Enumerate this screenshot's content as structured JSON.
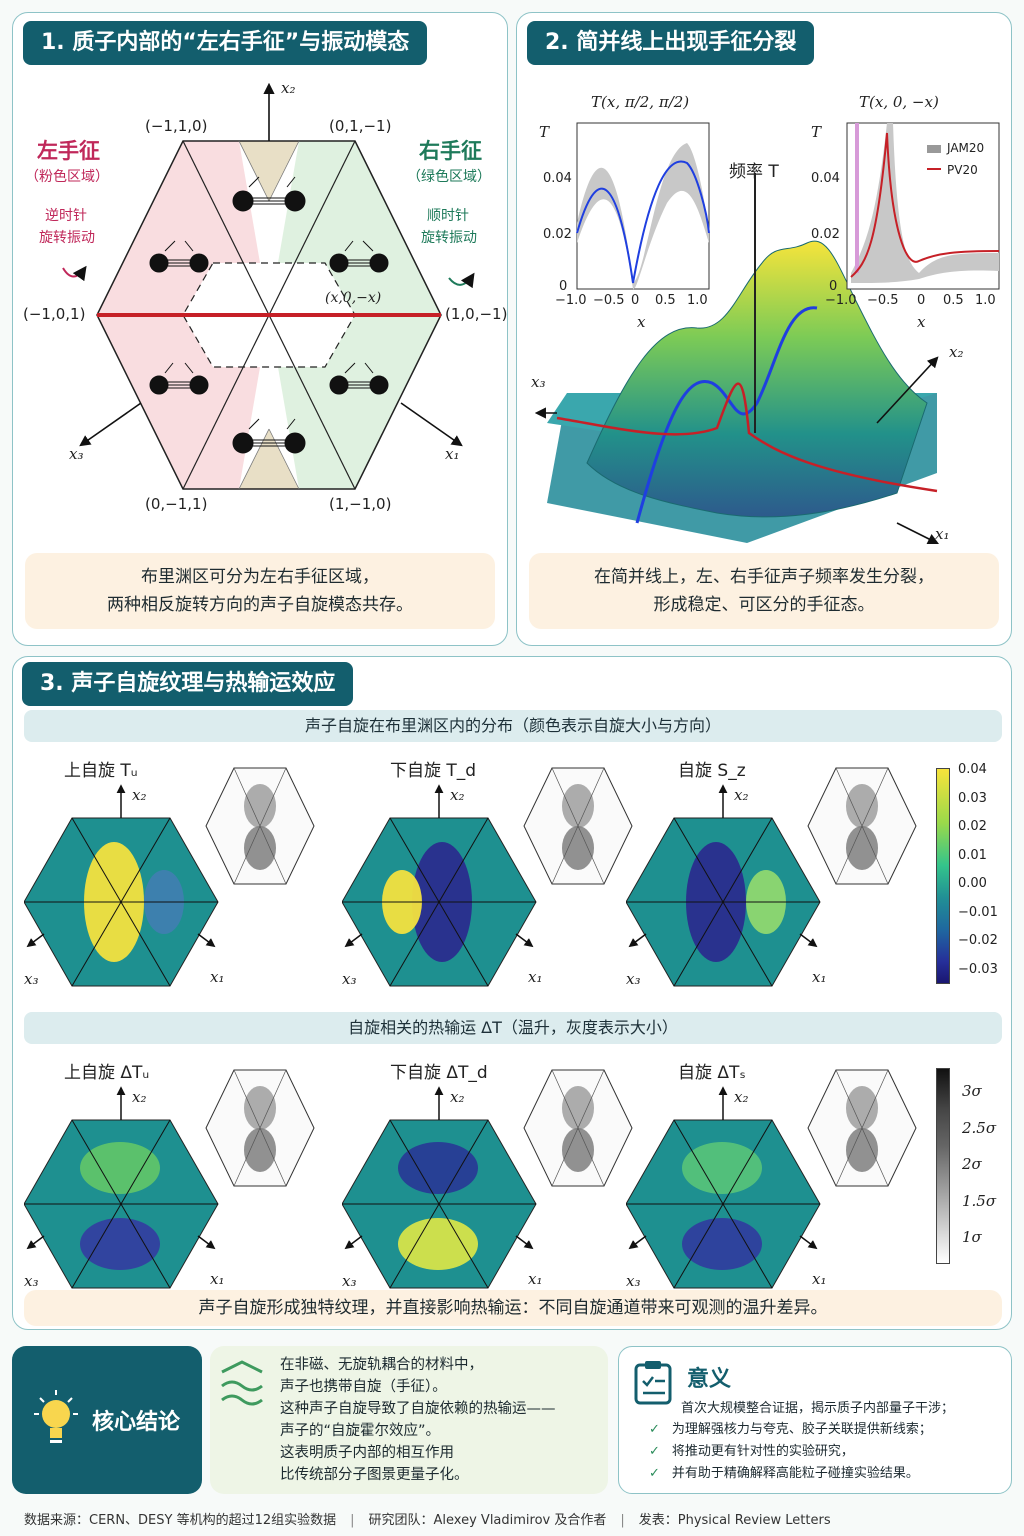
{
  "panel1": {
    "title": "1. 质子内部的“左右手征”与振动模态",
    "left_label": "左手征",
    "left_sub": "（粉色区域）",
    "left_rot": "逆时针",
    "left_rot2": "旋转振动",
    "right_label": "右手征",
    "right_sub": "（绿色区域）",
    "right_rot": "顺时针",
    "right_rot2": "旋转振动",
    "x2": "x₂",
    "x1": "x₁",
    "x3": "x₃",
    "c_top_left": "(−1,1,0)",
    "c_top_right": "(0,1,−1)",
    "c_left": "(−1,0,1)",
    "c_right": "(1,0,−1)",
    "c_bot_left": "(0,−1,1)",
    "c_bot_right": "(1,−1,0)",
    "c_center": "(x,0,−x)",
    "caption_l1": "布里渊区可分为左右手征区域，",
    "caption_l2": "两种相反旋转方向的声子自旋模态共存。"
  },
  "panel2": {
    "title": "2. 简并线上出现手征分裂",
    "freq_label": "频率 T",
    "x1": "x₁",
    "x2": "x₂",
    "x3": "x₃",
    "caption_l1": "在简并线上，左、右手征声子频率发生分裂，",
    "caption_l2": "形成稳定、可区分的手征态。",
    "inset1_title": "T(x, π/2, π/2)",
    "inset2_title": "T(x, 0, −x)",
    "t_label": "T",
    "x_label": "x",
    "legend_a": "JAM20",
    "legend_b": "PV20",
    "yticks": [
      "0.04",
      "0.02",
      "0"
    ],
    "xticks": [
      "−1.0",
      "−0.5",
      "0",
      "0.5",
      "1.0"
    ]
  },
  "panel3": {
    "title": "3. 声子自旋纹理与热输运效应",
    "band1": "声子自旋在布里渊区内的分布（颜色表示自旋大小与方向）",
    "band2": "自旋相关的热输运 ΔT（温升，灰度表示大小）",
    "row1_labels": [
      "上自旋 Tᵤ",
      "下自旋 T_d",
      "自旋 S_z"
    ],
    "row2_labels": [
      "上自旋 ΔTᵤ",
      "下自旋 ΔT_d",
      "自旋 ΔTₛ"
    ],
    "axis_x1": "x₁",
    "axis_x2": "x₂",
    "axis_x3": "x₃",
    "colorbar1": [
      "0.04",
      "0.03",
      "0.02",
      "0.01",
      "0.00",
      "−0.01",
      "−0.02",
      "−0.03"
    ],
    "colorbar2": [
      "3σ",
      "2.5σ",
      "2σ",
      "1.5σ",
      "1σ"
    ],
    "caption": "声子自旋形成独特纹理，并直接影响热输运：不同自旋通道带来可观测的温升差异。"
  },
  "bottom": {
    "core_title": "核心结论",
    "core_lines": [
      "在非磁、无旋轨耦合的材料中，",
      "声子也携带自旋（手征）。",
      "这种声子自旋导致了自旋依赖的热输运——",
      "声子的“自旋霍尔效应”。",
      "这表明质子内部的相互作用",
      "比传统部分子图景更量子化。"
    ],
    "meaning_title": "意义",
    "meaning_lead": "首次大规模整合证据，揭示质子内部量子干涉；",
    "meaning_items": [
      "为理解强核力与夸克、胶子关联提供新线索；",
      "将推动更有针对性的实验研究，",
      "并有助于精确解释高能粒子碰撞实验结果。"
    ]
  },
  "footer": {
    "source": "数据来源：CERN、DESY 等机构的超过12组实验数据",
    "team": "研究团队：Alexey Vladimirov 及合作者",
    "pub": "发表：Physical Review Letters"
  },
  "colors": {
    "teal_dark": "#135e6d",
    "pink_region": "#f9dde0",
    "green_region": "#dff1e0",
    "red_line": "#c62027",
    "caption_bg": "#fdf1e1"
  }
}
